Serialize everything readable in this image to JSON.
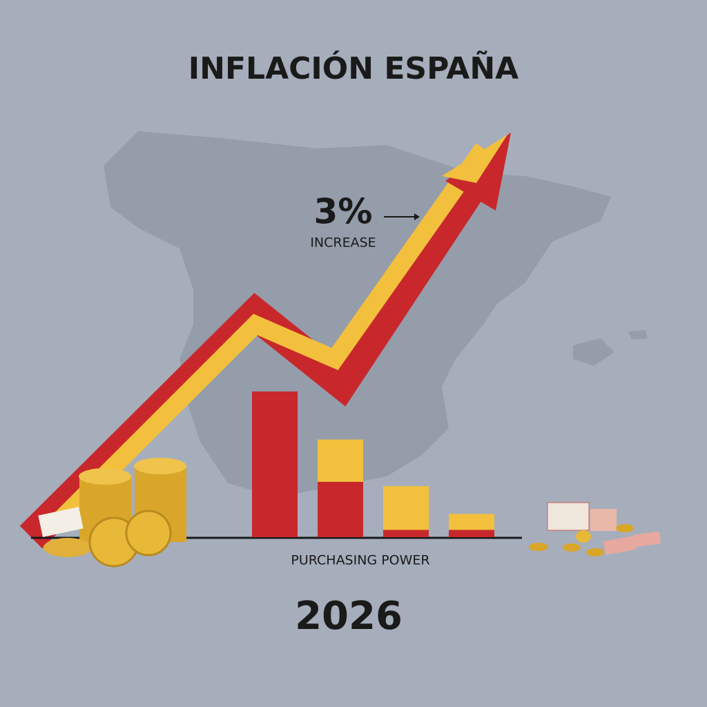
{
  "chart_data": {
    "type": "bar",
    "stacked": true,
    "title": "INFLACIÓN ESPAÑA",
    "annotation": "3%",
    "annotation_caption": "INCREASE",
    "x_label": "PURCHASING POWER",
    "footer": "2026",
    "categories": [
      null,
      null,
      null,
      null
    ],
    "series": [
      {
        "color": "#c8282c",
        "values": [
          100,
          38,
          5,
          5
        ]
      },
      {
        "color": "#f2c03c",
        "values": [
          0,
          29,
          30,
          11
        ]
      }
    ],
    "ylim": [
      0,
      100
    ]
  }
}
